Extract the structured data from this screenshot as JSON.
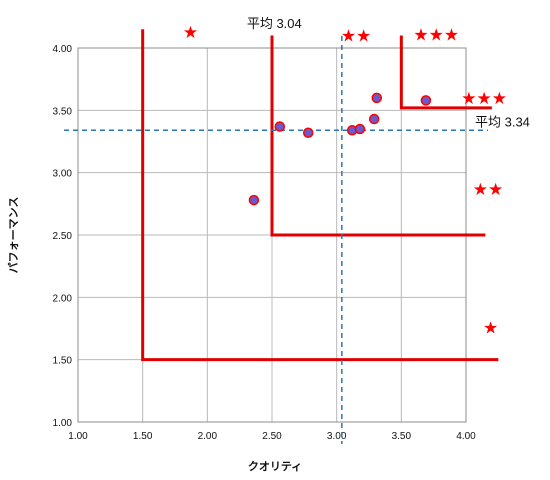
{
  "chart_data": {
    "type": "scatter",
    "title": "",
    "xlabel": "クオリティ",
    "ylabel": "パフォーマンス",
    "xlim": [
      1.0,
      4.0
    ],
    "ylim": [
      1.0,
      4.0
    ],
    "x_ticks": [
      "1.00",
      "1.50",
      "2.00",
      "2.50",
      "3.00",
      "3.50",
      "4.00"
    ],
    "y_ticks": [
      "1.00",
      "1.50",
      "2.00",
      "2.50",
      "3.00",
      "3.50",
      "4.00"
    ],
    "grid": true,
    "points": [
      {
        "x": 2.36,
        "y": 2.78
      },
      {
        "x": 2.56,
        "y": 3.37
      },
      {
        "x": 2.78,
        "y": 3.32
      },
      {
        "x": 3.12,
        "y": 3.34
      },
      {
        "x": 3.18,
        "y": 3.35
      },
      {
        "x": 3.29,
        "y": 3.43
      },
      {
        "x": 3.31,
        "y": 3.6
      },
      {
        "x": 3.69,
        "y": 3.58
      }
    ],
    "mean_x": {
      "value": 3.04,
      "label": "平均 3.04"
    },
    "mean_y": {
      "value": 3.34,
      "label": "平均 3.34"
    },
    "rating_zones": [
      {
        "stars": "★",
        "corner": [
          1.5,
          1.5
        ]
      },
      {
        "stars": "★★",
        "corner": [
          2.5,
          2.5
        ]
      },
      {
        "stars": "★★★",
        "corner": [
          3.5,
          3.52
        ]
      }
    ],
    "star_labels": [
      {
        "text": "★",
        "x": 1.87,
        "y": 4.13
      },
      {
        "text": "★★",
        "x": 3.15,
        "y": 4.1
      },
      {
        "text": "★★★",
        "x": 3.77,
        "y": 4.11
      },
      {
        "text": "★★★",
        "x": 4.14,
        "y": 3.6
      },
      {
        "text": "★★",
        "x": 4.17,
        "y": 2.87
      },
      {
        "text": "★",
        "x": 4.19,
        "y": 1.76
      }
    ],
    "colors": {
      "point_fill": "#6a5acd",
      "point_stroke": "#ff0000",
      "zone_line": "#e00000",
      "mean_line": "#2e75b6",
      "grid": "#b8b8b8",
      "star": "#ff0000"
    }
  }
}
